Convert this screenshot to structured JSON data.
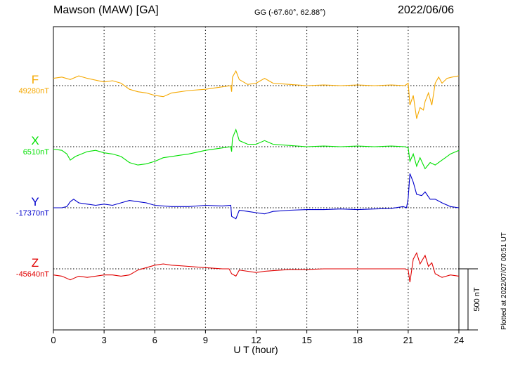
{
  "header": {
    "station": "Mawson (MAW)  [GA]",
    "coords": "GG (-67.60°,  62.88°)",
    "date": "2022/06/06"
  },
  "footer": {
    "plotted": "Plotted at 2022/07/07 00:51 UT"
  },
  "colors": {
    "F": "#f5a800",
    "X": "#00e000",
    "Y": "#0000cc",
    "Z": "#e00000"
  },
  "chart_data": {
    "type": "line",
    "xlabel": "U T (hour)",
    "xlim": [
      0,
      24
    ],
    "xticks": [
      0,
      3,
      6,
      9,
      12,
      15,
      18,
      21,
      24
    ],
    "scale_bar_label": "500 nT",
    "scale_bar_nT": 500,
    "grid": true,
    "series": [
      {
        "name": "F",
        "baseline_label": "49280nT",
        "baseline": 49280,
        "unit": "nT",
        "points": [
          [
            0,
            49340
          ],
          [
            0.5,
            49350
          ],
          [
            1,
            49330
          ],
          [
            1.5,
            49360
          ],
          [
            2,
            49340
          ],
          [
            3,
            49310
          ],
          [
            3.5,
            49320
          ],
          [
            4,
            49300
          ],
          [
            4.5,
            49250
          ],
          [
            5,
            49230
          ],
          [
            5.5,
            49220
          ],
          [
            6,
            49200
          ],
          [
            6.5,
            49190
          ],
          [
            7,
            49220
          ],
          [
            8,
            49240
          ],
          [
            9,
            49250
          ],
          [
            10,
            49270
          ],
          [
            10.5,
            49280
          ],
          [
            10.55,
            49230
          ],
          [
            10.6,
            49350
          ],
          [
            10.8,
            49400
          ],
          [
            11,
            49330
          ],
          [
            11.5,
            49290
          ],
          [
            12,
            49300
          ],
          [
            12.5,
            49340
          ],
          [
            13,
            49300
          ],
          [
            14,
            49290
          ],
          [
            15,
            49280
          ],
          [
            16,
            49285
          ],
          [
            17,
            49280
          ],
          [
            18,
            49285
          ],
          [
            19,
            49280
          ],
          [
            20,
            49285
          ],
          [
            20.8,
            49280
          ],
          [
            21,
            49300
          ],
          [
            21.1,
            49120
          ],
          [
            21.3,
            49200
          ],
          [
            21.5,
            49010
          ],
          [
            21.7,
            49100
          ],
          [
            21.9,
            49080
          ],
          [
            22,
            49150
          ],
          [
            22.2,
            49220
          ],
          [
            22.4,
            49120
          ],
          [
            22.6,
            49300
          ],
          [
            22.8,
            49350
          ],
          [
            23,
            49300
          ],
          [
            23.3,
            49340
          ],
          [
            23.6,
            49350
          ],
          [
            24,
            49360
          ]
        ]
      },
      {
        "name": "X",
        "baseline_label": "6510nT",
        "baseline": 6510,
        "unit": "nT",
        "points": [
          [
            0,
            6490
          ],
          [
            0.5,
            6480
          ],
          [
            0.8,
            6450
          ],
          [
            1,
            6400
          ],
          [
            1.3,
            6430
          ],
          [
            2,
            6470
          ],
          [
            2.5,
            6480
          ],
          [
            3,
            6460
          ],
          [
            3.5,
            6450
          ],
          [
            4,
            6430
          ],
          [
            4.5,
            6380
          ],
          [
            5,
            6360
          ],
          [
            5.5,
            6370
          ],
          [
            6,
            6390
          ],
          [
            6.5,
            6420
          ],
          [
            7,
            6430
          ],
          [
            8,
            6450
          ],
          [
            9,
            6480
          ],
          [
            10,
            6500
          ],
          [
            10.5,
            6510
          ],
          [
            10.55,
            6470
          ],
          [
            10.6,
            6580
          ],
          [
            10.8,
            6650
          ],
          [
            11,
            6560
          ],
          [
            11.5,
            6530
          ],
          [
            12,
            6530
          ],
          [
            12.5,
            6560
          ],
          [
            13,
            6530
          ],
          [
            14,
            6520
          ],
          [
            15,
            6510
          ],
          [
            16,
            6515
          ],
          [
            17,
            6510
          ],
          [
            18,
            6515
          ],
          [
            19,
            6510
          ],
          [
            20,
            6515
          ],
          [
            20.8,
            6510
          ],
          [
            21,
            6500
          ],
          [
            21.1,
            6390
          ],
          [
            21.3,
            6450
          ],
          [
            21.5,
            6350
          ],
          [
            21.7,
            6420
          ],
          [
            22,
            6330
          ],
          [
            22.3,
            6380
          ],
          [
            22.6,
            6360
          ],
          [
            23,
            6400
          ],
          [
            23.5,
            6450
          ],
          [
            24,
            6480
          ]
        ]
      },
      {
        "name": "Y",
        "baseline_label": "-17370nT",
        "baseline": -17370,
        "unit": "nT",
        "points": [
          [
            0,
            -17370
          ],
          [
            0.5,
            -17370
          ],
          [
            0.8,
            -17360
          ],
          [
            1,
            -17320
          ],
          [
            1.2,
            -17300
          ],
          [
            1.5,
            -17330
          ],
          [
            2,
            -17340
          ],
          [
            2.5,
            -17350
          ],
          [
            3,
            -17340
          ],
          [
            3.5,
            -17350
          ],
          [
            4,
            -17330
          ],
          [
            4.5,
            -17310
          ],
          [
            5,
            -17320
          ],
          [
            5.5,
            -17330
          ],
          [
            6,
            -17350
          ],
          [
            7,
            -17360
          ],
          [
            8,
            -17360
          ],
          [
            9,
            -17350
          ],
          [
            10,
            -17355
          ],
          [
            10.5,
            -17350
          ],
          [
            10.55,
            -17440
          ],
          [
            10.8,
            -17460
          ],
          [
            11,
            -17390
          ],
          [
            11.5,
            -17400
          ],
          [
            12,
            -17410
          ],
          [
            12.5,
            -17420
          ],
          [
            13,
            -17400
          ],
          [
            14,
            -17390
          ],
          [
            15,
            -17385
          ],
          [
            16,
            -17385
          ],
          [
            17,
            -17380
          ],
          [
            18,
            -17385
          ],
          [
            19,
            -17380
          ],
          [
            20,
            -17375
          ],
          [
            20.7,
            -17360
          ],
          [
            20.9,
            -17370
          ],
          [
            21,
            -17290
          ],
          [
            21.1,
            -17090
          ],
          [
            21.3,
            -17160
          ],
          [
            21.5,
            -17260
          ],
          [
            21.8,
            -17270
          ],
          [
            22,
            -17240
          ],
          [
            22.3,
            -17300
          ],
          [
            22.6,
            -17300
          ],
          [
            23,
            -17330
          ],
          [
            23.5,
            -17360
          ],
          [
            24,
            -17370
          ]
        ]
      },
      {
        "name": "Z",
        "baseline_label": "-45640nT",
        "baseline": -45640,
        "unit": "nT",
        "points": [
          [
            0,
            -45690
          ],
          [
            0.5,
            -45700
          ],
          [
            1,
            -45730
          ],
          [
            1.5,
            -45700
          ],
          [
            2,
            -45710
          ],
          [
            2.5,
            -45700
          ],
          [
            3,
            -45690
          ],
          [
            3.5,
            -45690
          ],
          [
            4,
            -45700
          ],
          [
            4.5,
            -45690
          ],
          [
            5,
            -45650
          ],
          [
            5.5,
            -45630
          ],
          [
            6,
            -45610
          ],
          [
            6.5,
            -45600
          ],
          [
            7,
            -45610
          ],
          [
            8,
            -45620
          ],
          [
            9,
            -45630
          ],
          [
            10,
            -45640
          ],
          [
            10.4,
            -45640
          ],
          [
            10.55,
            -45680
          ],
          [
            10.8,
            -45700
          ],
          [
            11,
            -45650
          ],
          [
            11.5,
            -45660
          ],
          [
            12,
            -45670
          ],
          [
            12.5,
            -45660
          ],
          [
            13,
            -45655
          ],
          [
            14,
            -45645
          ],
          [
            15,
            -45645
          ],
          [
            16,
            -45640
          ],
          [
            17,
            -45640
          ],
          [
            18,
            -45640
          ],
          [
            19,
            -45640
          ],
          [
            20,
            -45640
          ],
          [
            20.8,
            -45640
          ],
          [
            21,
            -45650
          ],
          [
            21.1,
            -45750
          ],
          [
            21.3,
            -45560
          ],
          [
            21.5,
            -45510
          ],
          [
            21.7,
            -45600
          ],
          [
            22,
            -45530
          ],
          [
            22.2,
            -45620
          ],
          [
            22.4,
            -45590
          ],
          [
            22.6,
            -45680
          ],
          [
            23,
            -45710
          ],
          [
            23.5,
            -45690
          ],
          [
            24,
            -45700
          ]
        ]
      }
    ]
  }
}
